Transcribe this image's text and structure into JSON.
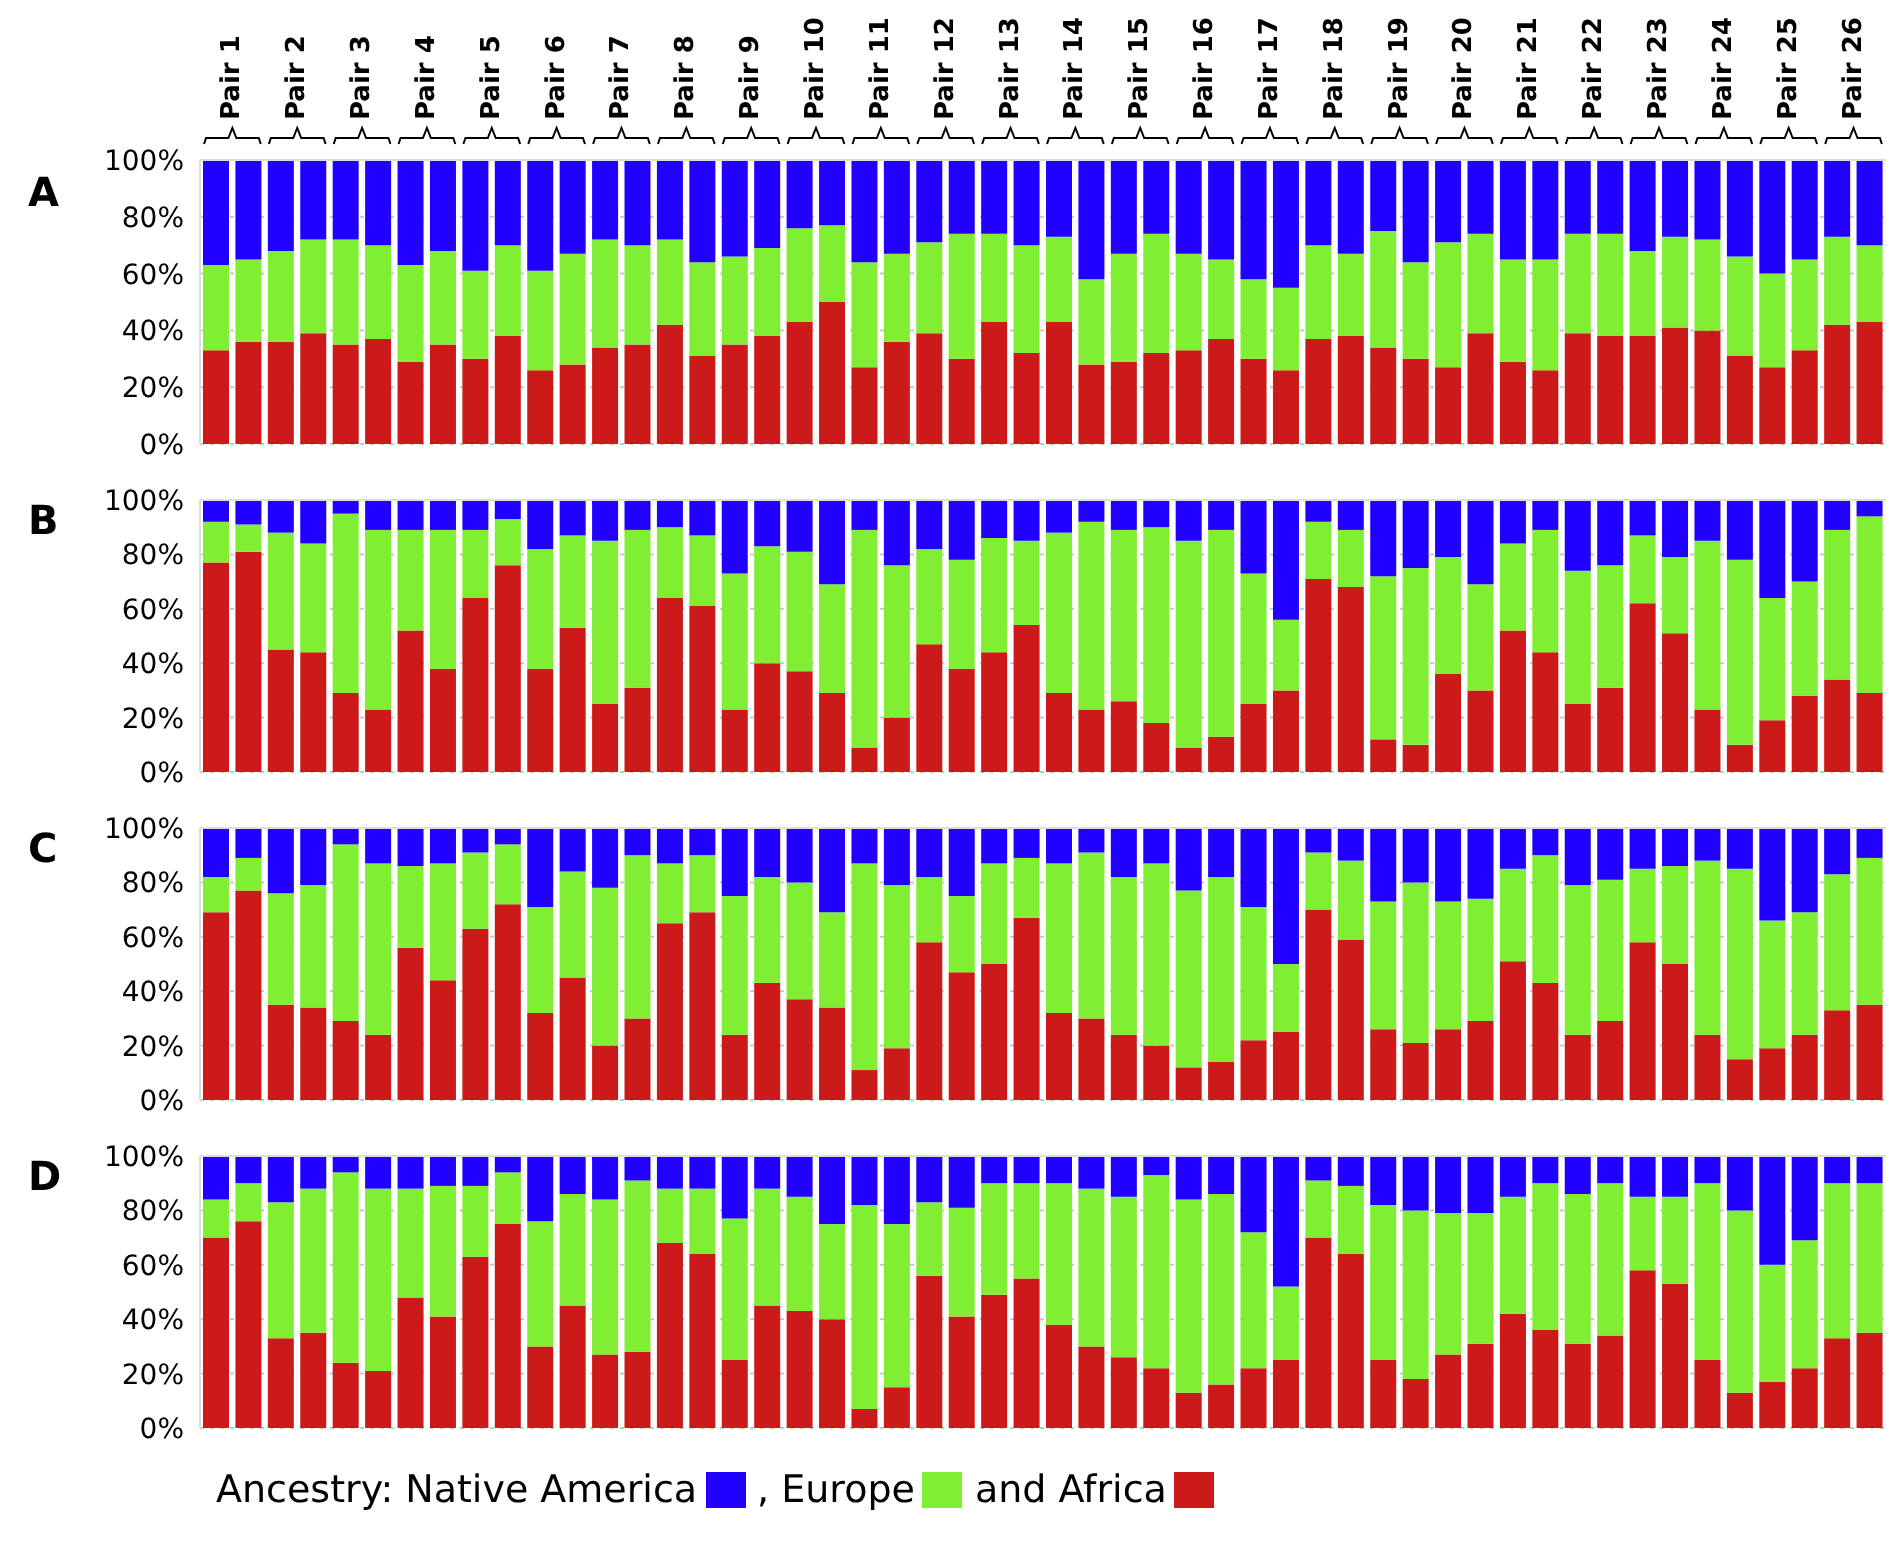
{
  "chart_data": [
    {
      "type": "bar",
      "title": "A",
      "stacked": true,
      "grid": "y",
      "categories": [
        "Pair 1",
        null,
        "Pair 2",
        null,
        "Pair 3",
        null,
        "Pair 4",
        null,
        "Pair 5",
        null,
        "Pair 6",
        null,
        "Pair 7",
        null,
        "Pair 8",
        null,
        "Pair 9",
        null,
        "Pair 10",
        null,
        "Pair 11",
        null,
        "Pair 12",
        null,
        "Pair 13",
        null,
        "Pair 14",
        null,
        "Pair 15",
        null,
        "Pair 16",
        null,
        "Pair 17",
        null,
        "Pair 18",
        null,
        "Pair 19",
        null,
        "Pair 20",
        null,
        "Pair 21",
        null,
        "Pair 22",
        null,
        "Pair 23",
        null,
        "Pair 24",
        null,
        "Pair 25",
        null,
        "Pair 26",
        null
      ],
      "ylim": [
        0,
        100
      ],
      "yticks": [
        {
          "value": 0,
          "label": "0%"
        },
        {
          "value": 20,
          "label": "20%"
        },
        {
          "value": 40,
          "label": "40%"
        },
        {
          "value": 60,
          "label": "60%"
        },
        {
          "value": 80,
          "label": "80%"
        },
        {
          "value": 100,
          "label": "100%"
        }
      ],
      "series": [
        {
          "color": "#cc1a1a",
          "values": [
            33,
            36,
            36,
            39,
            35,
            37,
            29,
            35,
            30,
            38,
            26,
            28,
            34,
            35,
            42,
            31,
            35,
            38,
            43,
            50,
            27,
            36,
            39,
            30,
            43,
            32,
            43,
            28,
            29,
            32,
            33,
            37,
            30,
            26,
            37,
            38,
            34,
            30,
            27,
            39,
            29,
            26,
            39,
            38,
            38,
            41,
            40,
            31,
            27,
            33,
            42,
            43
          ]
        },
        {
          "color": "#80ee33",
          "values": [
            30,
            29,
            32,
            33,
            37,
            33,
            34,
            33,
            31,
            32,
            35,
            39,
            38,
            35,
            30,
            33,
            31,
            31,
            33,
            27,
            37,
            31,
            32,
            44,
            31,
            38,
            30,
            30,
            38,
            42,
            34,
            28,
            28,
            29,
            33,
            29,
            41,
            34,
            44,
            35,
            36,
            39,
            35,
            36,
            30,
            32,
            32,
            35,
            33,
            32,
            31,
            27
          ]
        },
        {
          "color": "#2200ff",
          "values": [
            37,
            35,
            32,
            28,
            28,
            30,
            37,
            32,
            39,
            30,
            39,
            33,
            28,
            30,
            28,
            36,
            34,
            31,
            24,
            23,
            36,
            33,
            29,
            26,
            26,
            30,
            27,
            42,
            33,
            26,
            33,
            35,
            42,
            45,
            30,
            33,
            25,
            36,
            29,
            26,
            35,
            35,
            26,
            26,
            32,
            27,
            28,
            34,
            40,
            35,
            27,
            30
          ]
        }
      ]
    },
    {
      "type": "bar",
      "title": "B",
      "stacked": true,
      "grid": "y",
      "tick_labels": "y",
      "categories": [
        null,
        null,
        null,
        null,
        null,
        null,
        null,
        null,
        null,
        null,
        null,
        null,
        null,
        null,
        null,
        null,
        null,
        null,
        null,
        null,
        null,
        null,
        null,
        null,
        null,
        null,
        null,
        null,
        null,
        null,
        null,
        null,
        null,
        null,
        null,
        null,
        null,
        null,
        null,
        null,
        null,
        null,
        null,
        null,
        null,
        null,
        null,
        null,
        null,
        null,
        null,
        null
      ],
      "ylim": [
        0,
        100
      ],
      "yticks": [
        {
          "value": 0,
          "label": "0%"
        },
        {
          "value": 20,
          "label": "20%"
        },
        {
          "value": 40,
          "label": "40%"
        },
        {
          "value": 60,
          "label": "60%"
        },
        {
          "value": 80,
          "label": "80%"
        },
        {
          "value": 100,
          "label": "100%"
        }
      ],
      "series": [
        {
          "color": "#cc1a1a",
          "values": [
            77,
            81,
            45,
            44,
            29,
            23,
            52,
            38,
            64,
            76,
            38,
            53,
            25,
            31,
            64,
            61,
            23,
            40,
            37,
            29,
            9,
            20,
            47,
            38,
            44,
            54,
            29,
            23,
            26,
            18,
            9,
            13,
            25,
            30,
            71,
            68,
            12,
            10,
            36,
            30,
            52,
            44,
            25,
            31,
            62,
            51,
            23,
            10,
            19,
            28,
            34,
            29
          ]
        },
        {
          "color": "#80ee33",
          "values": [
            15,
            10,
            43,
            40,
            66,
            66,
            37,
            51,
            25,
            17,
            44,
            34,
            60,
            58,
            26,
            26,
            50,
            43,
            44,
            40,
            80,
            56,
            35,
            40,
            42,
            31,
            59,
            69,
            63,
            72,
            76,
            76,
            48,
            26,
            21,
            21,
            60,
            65,
            43,
            39,
            32,
            45,
            49,
            45,
            25,
            28,
            62,
            68,
            45,
            42,
            55,
            65
          ]
        },
        {
          "color": "#2200ff",
          "values": [
            8,
            9,
            12,
            16,
            5,
            11,
            11,
            11,
            11,
            7,
            18,
            13,
            15,
            11,
            10,
            13,
            27,
            17,
            19,
            31,
            11,
            24,
            18,
            22,
            14,
            15,
            12,
            8,
            11,
            10,
            15,
            11,
            27,
            44,
            8,
            11,
            28,
            25,
            21,
            31,
            16,
            11,
            26,
            24,
            13,
            21,
            15,
            22,
            36,
            30,
            11,
            6
          ]
        }
      ]
    },
    {
      "type": "bar",
      "title": "C",
      "stacked": true,
      "grid": "y",
      "tick_labels": "y",
      "categories": [
        null,
        null,
        null,
        null,
        null,
        null,
        null,
        null,
        null,
        null,
        null,
        null,
        null,
        null,
        null,
        null,
        null,
        null,
        null,
        null,
        null,
        null,
        null,
        null,
        null,
        null,
        null,
        null,
        null,
        null,
        null,
        null,
        null,
        null,
        null,
        null,
        null,
        null,
        null,
        null,
        null,
        null,
        null,
        null,
        null,
        null,
        null,
        null,
        null,
        null,
        null,
        null
      ],
      "ylim": [
        0,
        100
      ],
      "yticks": [
        {
          "value": 0,
          "label": "0%"
        },
        {
          "value": 20,
          "label": "20%"
        },
        {
          "value": 40,
          "label": "40%"
        },
        {
          "value": 60,
          "label": "60%"
        },
        {
          "value": 80,
          "label": "80%"
        },
        {
          "value": 100,
          "label": "100%"
        }
      ],
      "series": [
        {
          "color": "#cc1a1a",
          "values": [
            69,
            77,
            35,
            34,
            29,
            24,
            56,
            44,
            63,
            72,
            32,
            45,
            20,
            30,
            65,
            69,
            24,
            43,
            37,
            34,
            11,
            19,
            58,
            47,
            50,
            67,
            32,
            30,
            24,
            20,
            12,
            14,
            22,
            25,
            70,
            59,
            26,
            21,
            26,
            29,
            51,
            43,
            24,
            29,
            58,
            50,
            24,
            15,
            19,
            24,
            33,
            35
          ]
        },
        {
          "color": "#80ee33",
          "values": [
            13,
            12,
            41,
            45,
            65,
            63,
            30,
            43,
            28,
            22,
            39,
            39,
            58,
            60,
            22,
            21,
            51,
            39,
            43,
            35,
            76,
            60,
            24,
            28,
            37,
            22,
            55,
            61,
            58,
            67,
            65,
            68,
            49,
            25,
            21,
            29,
            47,
            59,
            47,
            45,
            34,
            47,
            55,
            52,
            27,
            36,
            64,
            70,
            47,
            45,
            50,
            54
          ]
        },
        {
          "color": "#2200ff",
          "values": [
            18,
            11,
            24,
            21,
            6,
            13,
            14,
            13,
            9,
            6,
            29,
            16,
            22,
            10,
            13,
            10,
            25,
            18,
            20,
            31,
            13,
            21,
            18,
            25,
            13,
            11,
            13,
            9,
            18,
            13,
            23,
            18,
            29,
            50,
            9,
            12,
            27,
            20,
            27,
            26,
            15,
            10,
            21,
            19,
            15,
            14,
            12,
            15,
            34,
            31,
            17,
            11
          ]
        }
      ]
    },
    {
      "type": "bar",
      "title": "D",
      "stacked": true,
      "grid": "y",
      "tick_labels": "y",
      "legend": "bottom",
      "legend_title": "Ancestry:",
      "categories": [
        null,
        null,
        null,
        null,
        null,
        null,
        null,
        null,
        null,
        null,
        null,
        null,
        null,
        null,
        null,
        null,
        null,
        null,
        null,
        null,
        null,
        null,
        null,
        null,
        null,
        null,
        null,
        null,
        null,
        null,
        null,
        null,
        null,
        null,
        null,
        null,
        null,
        null,
        null,
        null,
        null,
        null,
        null,
        null,
        null,
        null,
        null,
        null,
        null,
        null,
        null,
        null
      ],
      "ylim": [
        0,
        100
      ],
      "yticks": [
        {
          "value": 0,
          "label": "0%"
        },
        {
          "value": 20,
          "label": "20%"
        },
        {
          "value": 40,
          "label": "40%"
        },
        {
          "value": 60,
          "label": "60%"
        },
        {
          "value": 80,
          "label": "80%"
        },
        {
          "value": 100,
          "label": "100%"
        }
      ],
      "series": [
        {
          "name": "and Africa",
          "color": "#cc1a1a",
          "values": [
            70,
            76,
            33,
            35,
            24,
            21,
            48,
            41,
            63,
            75,
            30,
            45,
            27,
            28,
            68,
            64,
            25,
            45,
            43,
            40,
            7,
            15,
            56,
            41,
            49,
            55,
            38,
            30,
            26,
            22,
            13,
            16,
            22,
            25,
            70,
            64,
            25,
            18,
            27,
            31,
            42,
            36,
            31,
            34,
            58,
            53,
            25,
            13,
            17,
            22,
            33,
            35
          ]
        },
        {
          "name": ", Europe",
          "color": "#80ee33",
          "values": [
            14,
            14,
            50,
            53,
            70,
            67,
            40,
            48,
            26,
            19,
            46,
            41,
            57,
            63,
            20,
            24,
            52,
            43,
            42,
            35,
            75,
            60,
            27,
            40,
            41,
            35,
            52,
            58,
            59,
            71,
            71,
            70,
            50,
            27,
            21,
            25,
            57,
            62,
            52,
            48,
            43,
            54,
            55,
            56,
            27,
            32,
            65,
            67,
            43,
            47,
            57,
            55
          ]
        },
        {
          "name": "Native America",
          "color": "#2200ff",
          "values": [
            16,
            10,
            17,
            12,
            6,
            12,
            12,
            11,
            11,
            6,
            24,
            14,
            16,
            9,
            12,
            12,
            23,
            12,
            15,
            25,
            18,
            25,
            17,
            19,
            10,
            10,
            10,
            12,
            15,
            7,
            16,
            14,
            28,
            48,
            9,
            11,
            18,
            20,
            21,
            21,
            15,
            10,
            14,
            10,
            15,
            15,
            10,
            20,
            40,
            31,
            10,
            10
          ]
        }
      ]
    }
  ]
}
